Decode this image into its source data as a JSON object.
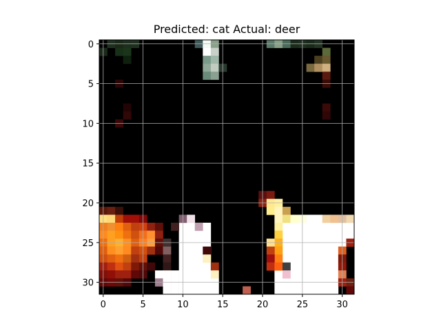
{
  "chart_data": {
    "type": "heatmap",
    "title": "Predicted: cat Actual: deer",
    "xlabel": "",
    "ylabel": "",
    "xlim": [
      -0.5,
      31.5
    ],
    "ylim": [
      31.5,
      -0.5
    ],
    "x_ticks": [
      0,
      5,
      10,
      15,
      20,
      25,
      30
    ],
    "y_ticks": [
      0,
      5,
      10,
      15,
      20,
      25,
      30
    ],
    "grid": true,
    "background_color": "#000000",
    "pixels": [
      [
        0,
        1,
        "#1c2a1c"
      ],
      [
        1,
        0,
        "#203020"
      ],
      [
        2,
        0,
        "#1a2818"
      ],
      [
        3,
        0,
        "#1e2e1e"
      ],
      [
        4,
        0,
        "#203020"
      ],
      [
        2,
        1,
        "#183018"
      ],
      [
        3,
        1,
        "#1b351b"
      ],
      [
        3,
        2,
        "#0f200f"
      ],
      [
        12,
        0,
        "#405a5a"
      ],
      [
        13,
        0,
        "#f4fbf4"
      ],
      [
        14,
        0,
        "#8aa08a"
      ],
      [
        13,
        1,
        "#ffffff"
      ],
      [
        14,
        1,
        "#c8d0c8"
      ],
      [
        13,
        2,
        "#7a9a8a"
      ],
      [
        14,
        2,
        "#9fb7a8"
      ],
      [
        13,
        3,
        "#90a898"
      ],
      [
        14,
        3,
        "#c0ccbf"
      ],
      [
        13,
        4,
        "#6a8a7a"
      ],
      [
        14,
        4,
        "#8aa090"
      ],
      [
        15,
        3,
        "#2a3a30"
      ],
      [
        21,
        0,
        "#5a7a6a"
      ],
      [
        22,
        0,
        "#88a088"
      ],
      [
        23,
        0,
        "#4a6a5a"
      ],
      [
        24,
        0,
        "#1c2c1c"
      ],
      [
        25,
        0,
        "#203020"
      ],
      [
        26,
        0,
        "#1a2a1a"
      ],
      [
        27,
        0,
        "#243424"
      ],
      [
        28,
        1,
        "#5c6a3a"
      ],
      [
        27,
        2,
        "#4a4020"
      ],
      [
        28,
        2,
        "#6a5a30"
      ],
      [
        26,
        3,
        "#7a6a40"
      ],
      [
        27,
        3,
        "#b09060"
      ],
      [
        28,
        3,
        "#d0b080"
      ],
      [
        28,
        4,
        "#5a1a10"
      ],
      [
        28,
        5,
        "#3a0c08"
      ],
      [
        2,
        5,
        "#2a0606"
      ],
      [
        3,
        8,
        "#220404"
      ],
      [
        3,
        9,
        "#300808"
      ],
      [
        2,
        10,
        "#3a0808"
      ],
      [
        28,
        8,
        "#3a0a08"
      ],
      [
        28,
        9,
        "#300606"
      ],
      [
        20,
        19,
        "#5a1010"
      ],
      [
        21,
        19,
        "#7a1a10"
      ],
      [
        20,
        20,
        "#8a2010"
      ],
      [
        21,
        20,
        "#ffe890"
      ],
      [
        22,
        20,
        "#fff0a0"
      ],
      [
        21,
        21,
        "#ffec8a"
      ],
      [
        22,
        21,
        "#fff4c0"
      ],
      [
        23,
        21,
        "#c8a050"
      ],
      [
        0,
        21,
        "#5a1808"
      ],
      [
        1,
        21,
        "#6a2010"
      ],
      [
        2,
        21,
        "#3a1008"
      ],
      [
        0,
        22,
        "#ffe080"
      ],
      [
        1,
        22,
        "#ffd878"
      ],
      [
        2,
        22,
        "#c04008"
      ],
      [
        3,
        22,
        "#a01008"
      ],
      [
        4,
        22,
        "#a01008"
      ],
      [
        5,
        22,
        "#800808"
      ],
      [
        0,
        23,
        "#f08020"
      ],
      [
        1,
        23,
        "#f09030"
      ],
      [
        2,
        23,
        "#ff8010"
      ],
      [
        3,
        23,
        "#e06010"
      ],
      [
        4,
        23,
        "#c04010"
      ],
      [
        5,
        23,
        "#d04010"
      ],
      [
        6,
        23,
        "#902010"
      ],
      [
        7,
        23,
        "#601008"
      ],
      [
        0,
        24,
        "#ff8a20"
      ],
      [
        1,
        24,
        "#ffa020"
      ],
      [
        2,
        24,
        "#ff9010"
      ],
      [
        3,
        24,
        "#f07010"
      ],
      [
        4,
        24,
        "#d05010"
      ],
      [
        5,
        24,
        "#f07020"
      ],
      [
        6,
        24,
        "#ff9030"
      ],
      [
        7,
        24,
        "#902010"
      ],
      [
        0,
        25,
        "#f07010"
      ],
      [
        1,
        25,
        "#ffa020"
      ],
      [
        2,
        25,
        "#ffb030"
      ],
      [
        3,
        25,
        "#ff9020"
      ],
      [
        4,
        25,
        "#e06010"
      ],
      [
        5,
        25,
        "#ff8020"
      ],
      [
        6,
        25,
        "#ffa040"
      ],
      [
        7,
        25,
        "#601008"
      ],
      [
        8,
        25,
        "#400808"
      ],
      [
        0,
        26,
        "#e06010"
      ],
      [
        1,
        26,
        "#ff9020"
      ],
      [
        2,
        26,
        "#ffa030"
      ],
      [
        3,
        26,
        "#ff8a20"
      ],
      [
        4,
        26,
        "#c04010"
      ],
      [
        5,
        26,
        "#d05010"
      ],
      [
        6,
        26,
        "#a03010"
      ],
      [
        7,
        26,
        "#500808"
      ],
      [
        0,
        27,
        "#d05010"
      ],
      [
        1,
        27,
        "#e06010"
      ],
      [
        2,
        27,
        "#f07010"
      ],
      [
        3,
        27,
        "#d06010"
      ],
      [
        4,
        27,
        "#a03010"
      ],
      [
        5,
        27,
        "#c04010"
      ],
      [
        0,
        28,
        "#a02010"
      ],
      [
        1,
        28,
        "#c03010"
      ],
      [
        2,
        28,
        "#e05010"
      ],
      [
        3,
        28,
        "#c04010"
      ],
      [
        4,
        28,
        "#801808"
      ],
      [
        5,
        28,
        "#601008"
      ],
      [
        6,
        28,
        "#400808"
      ],
      [
        0,
        29,
        "#801008"
      ],
      [
        1,
        29,
        "#901008"
      ],
      [
        2,
        29,
        "#a02010"
      ],
      [
        3,
        29,
        "#a02010"
      ],
      [
        4,
        29,
        "#600808"
      ],
      [
        5,
        29,
        "#500808"
      ],
      [
        0,
        30,
        "#600808"
      ],
      [
        1,
        30,
        "#700808"
      ],
      [
        2,
        30,
        "#601008"
      ],
      [
        3,
        30,
        "#500808"
      ],
      [
        10,
        22,
        "#806070"
      ],
      [
        11,
        22,
        "#f0e0e8"
      ],
      [
        12,
        23,
        "#c0a0b0"
      ],
      [
        9,
        23,
        "#402020"
      ],
      [
        8,
        25,
        "#403030"
      ],
      [
        8,
        26,
        "#806060"
      ],
      [
        8,
        27,
        "#402020"
      ],
      [
        8,
        28,
        "#301818"
      ],
      [
        8,
        29,
        "#ffffff"
      ],
      [
        7,
        29,
        "#ffffff"
      ],
      [
        7,
        30,
        "#a08090"
      ],
      [
        8,
        30,
        "#ffffff"
      ],
      [
        9,
        29,
        "#ffffff"
      ],
      [
        9,
        30,
        "#ffffff"
      ],
      [
        10,
        30,
        "#ffffff"
      ],
      [
        11,
        30,
        "#ffffff"
      ],
      [
        12,
        30,
        "#ffffff"
      ],
      [
        13,
        30,
        "#ffffff"
      ],
      [
        14,
        30,
        "#ffffff"
      ],
      [
        8,
        31,
        "#ffffff"
      ],
      [
        9,
        31,
        "#ffffff"
      ],
      [
        10,
        31,
        "#ffffff"
      ],
      [
        11,
        31,
        "#ffffff"
      ],
      [
        12,
        31,
        "#ffffff"
      ],
      [
        13,
        31,
        "#ffffff"
      ],
      [
        14,
        31,
        "#ffffff"
      ],
      [
        13,
        26,
        "#400808"
      ],
      [
        13,
        27,
        "#fff0c0"
      ],
      [
        14,
        28,
        "#a03010"
      ],
      [
        14,
        29,
        "#fff0c0"
      ],
      [
        18,
        31,
        "#c06050"
      ],
      [
        22,
        22,
        "#fff4c0"
      ],
      [
        23,
        22,
        "#f0e080"
      ],
      [
        24,
        22,
        "#ffffd0"
      ],
      [
        25,
        22,
        "#ffffe0"
      ],
      [
        26,
        22,
        "#ffffff"
      ],
      [
        27,
        22,
        "#ffffff"
      ],
      [
        28,
        22,
        "#f0d0a0"
      ],
      [
        29,
        22,
        "#f0c090"
      ],
      [
        30,
        22,
        "#e0c0a0"
      ],
      [
        31,
        22,
        "#f0d8b0"
      ],
      [
        22,
        23,
        "#fff0a0"
      ],
      [
        22,
        24,
        "#ffd040"
      ],
      [
        22,
        25,
        "#ffb020"
      ],
      [
        21,
        25,
        "#ffe090"
      ],
      [
        22,
        26,
        "#ffa010"
      ],
      [
        21,
        26,
        "#c04010"
      ],
      [
        22,
        27,
        "#ff8010"
      ],
      [
        21,
        27,
        "#a01010"
      ],
      [
        21,
        28,
        "#c03010"
      ],
      [
        22,
        28,
        "#ff6010"
      ],
      [
        23,
        28,
        "#404040"
      ],
      [
        23,
        29,
        "#f0c0d0"
      ],
      [
        31,
        25,
        "#a02010"
      ],
      [
        30,
        26,
        "#e06020"
      ],
      [
        30,
        27,
        "#801808"
      ],
      [
        30,
        28,
        "#901808"
      ],
      [
        30,
        29,
        "#e08050"
      ],
      [
        30,
        30,
        "#a02010"
      ],
      [
        31,
        30,
        "#702010"
      ],
      [
        31,
        31,
        "#600808"
      ]
    ],
    "white_regions": [
      [
        10,
        23,
        13,
        29
      ],
      [
        23,
        23,
        29,
        31
      ],
      [
        22,
        29,
        22,
        31
      ],
      [
        30,
        23,
        30,
        25
      ],
      [
        31,
        23,
        31,
        24
      ]
    ]
  }
}
